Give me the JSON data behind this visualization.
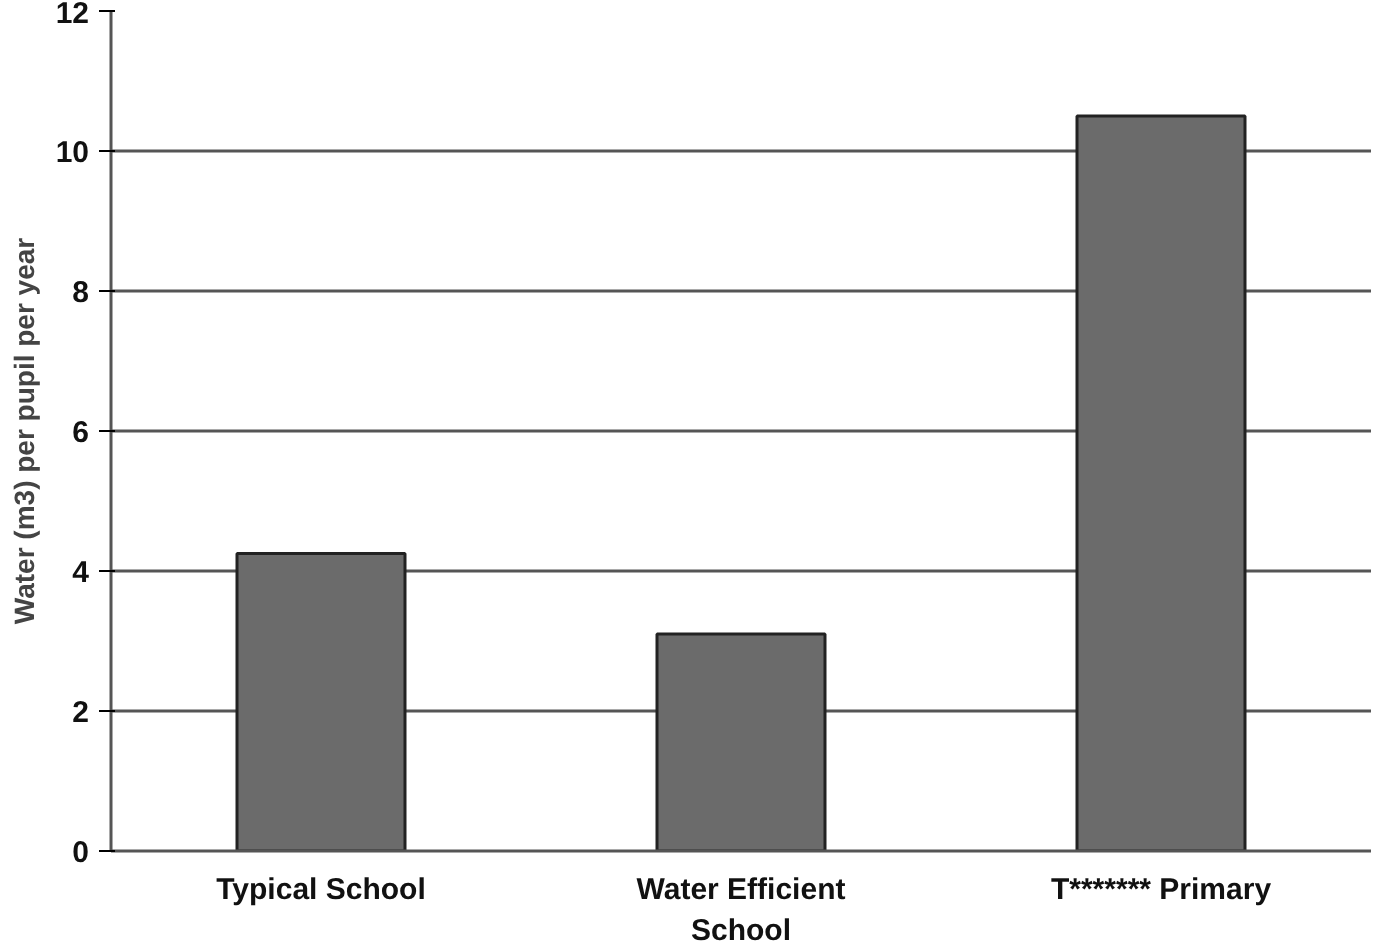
{
  "chart_data": {
    "type": "bar",
    "ylabel": "Water (m3) per pupil per year",
    "categories": [
      "Typical School",
      "Water Efficient School",
      "T******* Primary"
    ],
    "values": [
      4.25,
      3.1,
      10.5
    ],
    "color": "#6b6b6b",
    "ylim": [
      0,
      12
    ],
    "yticks": [
      0,
      2,
      4,
      6,
      8,
      10,
      12
    ],
    "grid": "y"
  }
}
